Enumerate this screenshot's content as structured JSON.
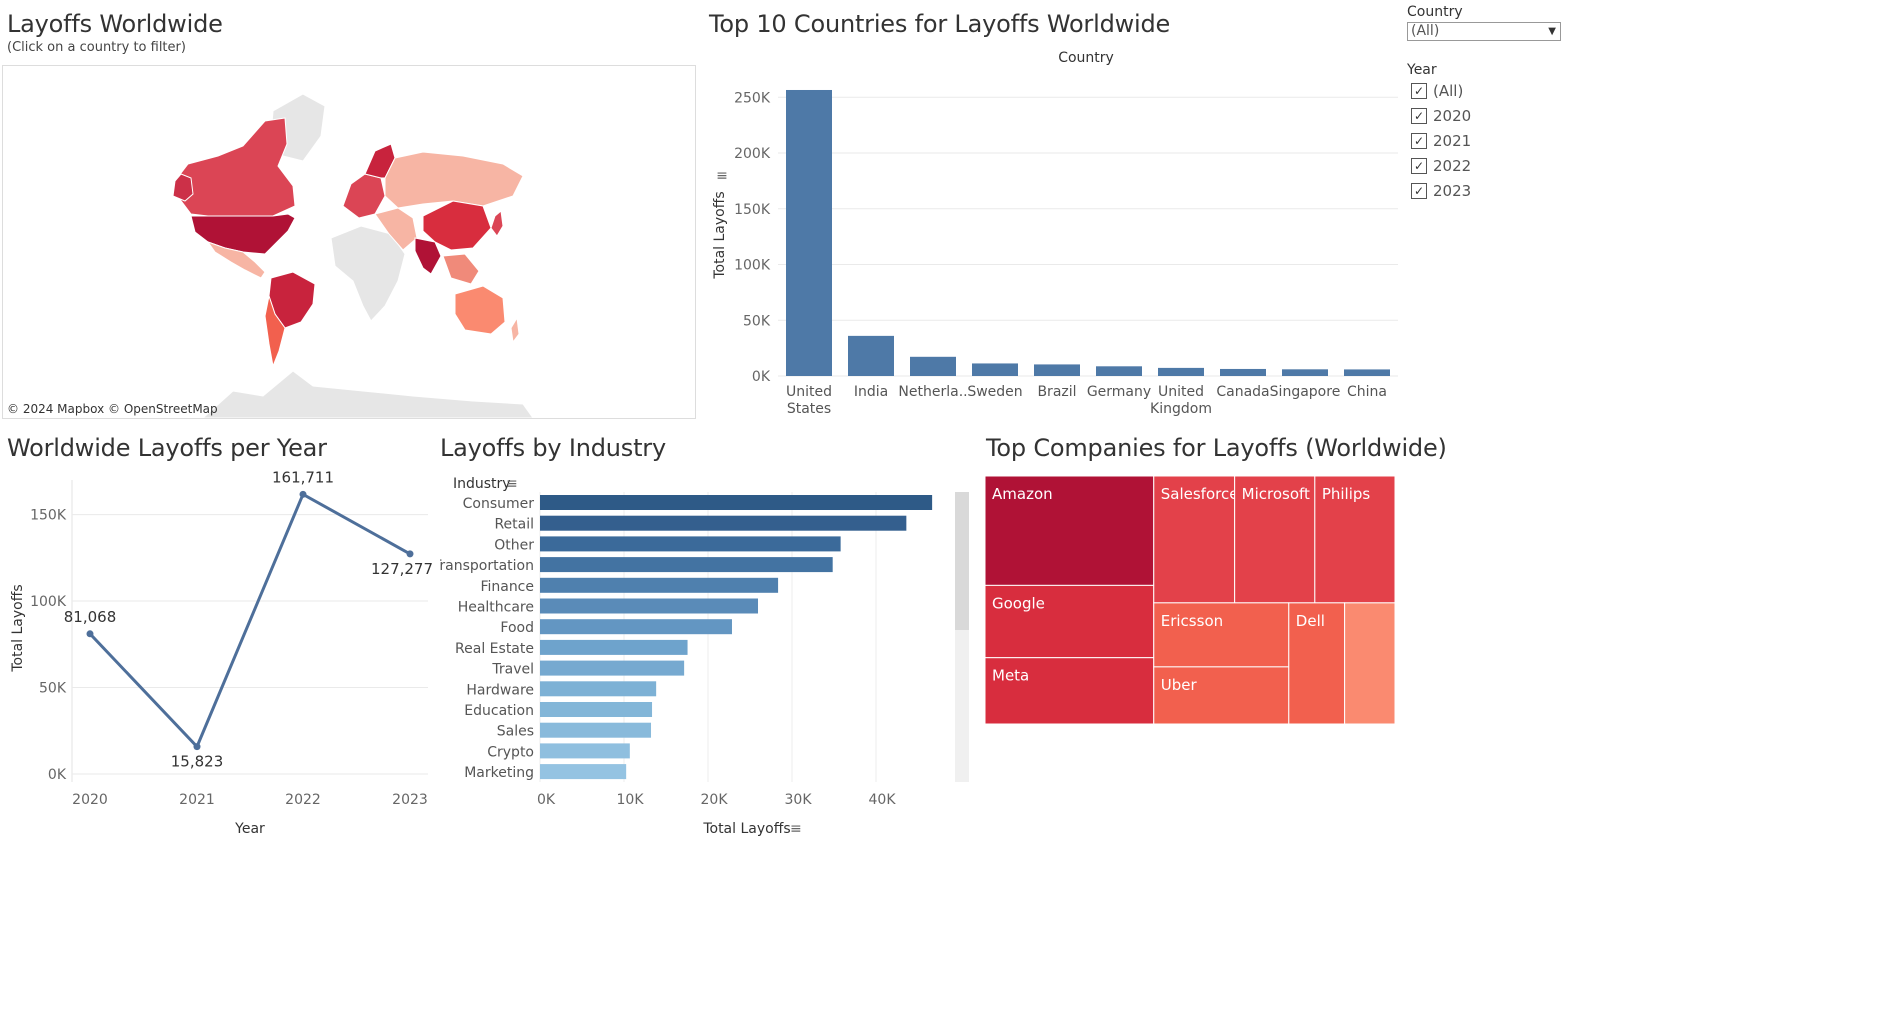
{
  "map": {
    "title": "Layoffs Worldwide",
    "subtitle": "(Click on a country to filter)",
    "attribution": "© 2024 Mapbox  © OpenStreetMap"
  },
  "filters": {
    "country_label": "Country",
    "country_value": "(All)",
    "year_label": "Year",
    "year_options": [
      {
        "label": "(All)",
        "checked": true
      },
      {
        "label": "2020",
        "checked": true
      },
      {
        "label": "2021",
        "checked": true
      },
      {
        "label": "2022",
        "checked": true
      },
      {
        "label": "2023",
        "checked": true
      }
    ]
  },
  "colors": {
    "bar_blue": "#4e79a7",
    "line_blue": "#4e6f9a",
    "dark_red": "#b01236",
    "red": "#d82d3e",
    "mid_red": "#e3414a",
    "light_red": "#f2604e",
    "salmon": "#fa8a70"
  },
  "top_countries": {
    "title": "Top 10 Countries for Layoffs Worldwide",
    "header": "Country",
    "ylabel": "Total Layoffs"
  },
  "per_year": {
    "title": "Worldwide Layoffs per Year",
    "xlabel": "Year",
    "ylabel": "Total Layoffs"
  },
  "industry": {
    "title": "Layoffs by Industry",
    "header": "Industry",
    "xlabel": "Total Layoffs"
  },
  "companies": {
    "title": "Top Companies for Layoffs (Worldwide)"
  },
  "chart_data": [
    {
      "id": "top_countries",
      "type": "bar",
      "title": "Top 10 Countries for Layoffs Worldwide",
      "xlabel": "Country",
      "ylabel": "Total Layoffs",
      "categories": [
        "United States",
        "India",
        "Netherla..",
        "Sweden",
        "Brazil",
        "Germany",
        "United Kingdom",
        "Canada",
        "Singapore",
        "China"
      ],
      "values": [
        256559,
        35993,
        17220,
        11264,
        10391,
        8701,
        7275,
        6319,
        5995,
        5905
      ],
      "ylim": [
        0,
        270000
      ],
      "yticks": [
        0,
        50000,
        100000,
        150000,
        200000,
        250000
      ],
      "ytick_labels": [
        "0K",
        "50K",
        "100K",
        "150K",
        "200K",
        "250K"
      ],
      "grid": true
    },
    {
      "id": "per_year",
      "type": "line",
      "title": "Worldwide Layoffs per Year",
      "xlabel": "Year",
      "ylabel": "Total Layoffs",
      "x": [
        "2020",
        "2021",
        "2022",
        "2023"
      ],
      "values": [
        81068,
        15823,
        161711,
        127277
      ],
      "value_labels": [
        "81,068",
        "15,823",
        "161,711",
        "127,277"
      ],
      "ylim": [
        0,
        170000
      ],
      "yticks": [
        0,
        50000,
        100000,
        150000
      ],
      "ytick_labels": [
        "0K",
        "50K",
        "100K",
        "150K"
      ],
      "grid": true
    },
    {
      "id": "industry",
      "type": "bar",
      "orientation": "horizontal",
      "title": "Layoffs by Industry",
      "xlabel": "Total Layoffs",
      "ylabel": "Industry",
      "categories": [
        "Consumer",
        "Retail",
        "Other",
        "Transportation",
        "Finance",
        "Healthcare",
        "Food",
        "Real Estate",
        "Travel",
        "Hardware",
        "Education",
        "Sales",
        "Crypto",
        "Marketing"
      ],
      "values": [
        46682,
        43613,
        35789,
        34843,
        28344,
        25953,
        22855,
        17565,
        17159,
        13828,
        13338,
        13216,
        10693,
        10258
      ],
      "xlim": [
        0,
        50000
      ],
      "xticks": [
        0,
        10000,
        20000,
        30000,
        40000
      ],
      "xtick_labels": [
        "0K",
        "10K",
        "20K",
        "30K",
        "40K"
      ],
      "grid": true
    },
    {
      "id": "companies",
      "type": "treemap",
      "title": "Top Companies for Layoffs (Worldwide)",
      "categories": [
        "Amazon",
        "Google",
        "Meta",
        "Salesforce",
        "Microsoft",
        "Philips",
        "Ericsson",
        "Uber",
        "Dell",
        ""
      ],
      "values": [
        18150,
        12000,
        11000,
        10090,
        10000,
        10000,
        8500,
        7585,
        6650,
        6000
      ]
    }
  ]
}
